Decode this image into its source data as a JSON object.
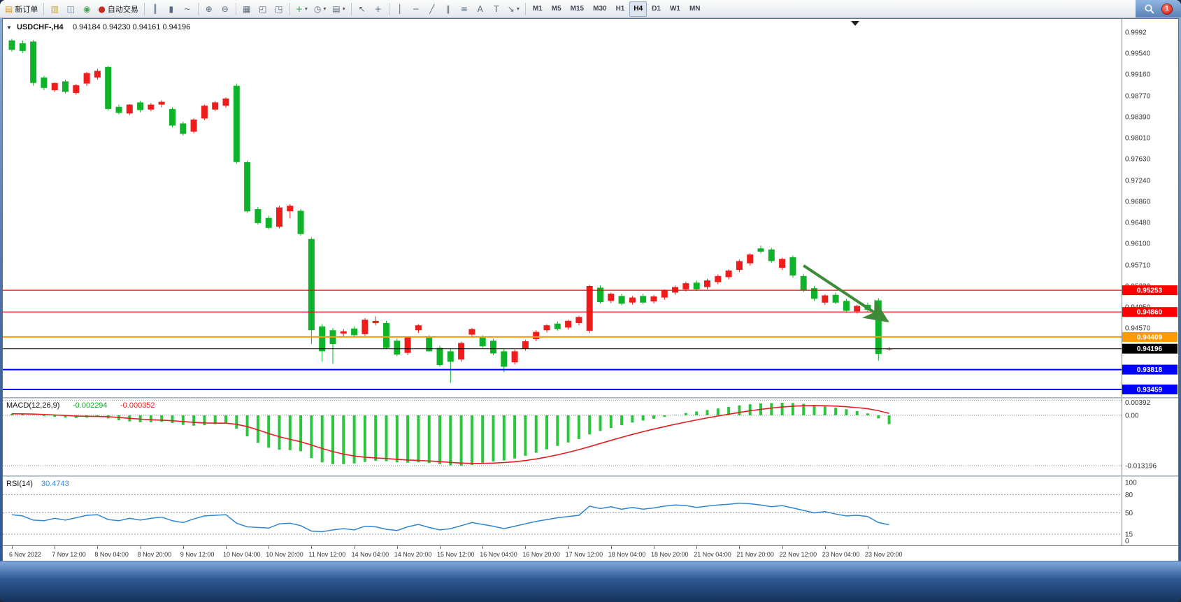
{
  "window": {
    "badge_count": "1"
  },
  "icons": {
    "chart_menu": "▼",
    "caret": "▾"
  },
  "toolbar": {
    "groups": [
      [
        {
          "name": "new-order-button",
          "glyph": "▤",
          "color": "#d89a2e",
          "label": "新订单"
        }
      ],
      [
        {
          "name": "charts-grid-button",
          "glyph": "▥",
          "color": "#caa53d"
        },
        {
          "name": "data-window-button",
          "glyph": "◫",
          "color": "#5b83b5"
        },
        {
          "name": "signals-button",
          "glyph": "◉",
          "color": "#4f9e58"
        },
        {
          "name": "autotrade-button",
          "glyph": "●",
          "color": "#c92a1e",
          "label": "自动交易"
        }
      ],
      [
        {
          "name": "bars-type-button",
          "glyph": "║"
        },
        {
          "name": "candles-type-button",
          "glyph": "▮"
        },
        {
          "name": "line-type-button",
          "glyph": "~"
        }
      ],
      [
        {
          "name": "zoom-in-button",
          "glyph": "⊕"
        },
        {
          "name": "zoom-out-button",
          "glyph": "⊖"
        }
      ],
      [
        {
          "name": "tile-windows-button",
          "glyph": "▦"
        },
        {
          "name": "auto-arrange-button",
          "glyph": "◰"
        },
        {
          "name": "track-chart-button",
          "glyph": "◳"
        }
      ],
      [
        {
          "name": "new-chart-button",
          "glyph": "+",
          "color": "#2fa84f",
          "caret": true
        },
        {
          "name": "periods-button",
          "glyph": "◷",
          "caret": true
        },
        {
          "name": "templates-button",
          "glyph": "▤",
          "caret": true
        }
      ],
      [
        {
          "name": "cursor-button",
          "glyph": "↖"
        },
        {
          "name": "crosshair-button",
          "glyph": "+"
        }
      ],
      [
        {
          "name": "vertical-line-button",
          "glyph": "│"
        },
        {
          "name": "horizontal-line-button",
          "glyph": "─"
        },
        {
          "name": "trendline-button",
          "glyph": "╱"
        },
        {
          "name": "channel-button",
          "glyph": "∥"
        },
        {
          "name": "fibonacci-button",
          "glyph": "≡"
        },
        {
          "name": "text-button",
          "glyph": "A"
        },
        {
          "name": "label-button",
          "glyph": "T"
        },
        {
          "name": "arrows-button",
          "glyph": "↘",
          "caret": true
        }
      ]
    ],
    "timeframes": [
      "M1",
      "M5",
      "M15",
      "M30",
      "H1",
      "H4",
      "D1",
      "W1",
      "MN"
    ],
    "active_timeframe": "H4"
  },
  "colors": {
    "up": "#ef1c1c",
    "down": "#0fb32a",
    "macd_hist": "#2cc63e",
    "macd_signal": "#e02020",
    "rsi_line": "#2e86d3"
  },
  "chart_data": {
    "type": "candlestick",
    "symbol": "USDCHF-",
    "timeframe": "H4",
    "main": {
      "header_symbol": "USDCHF-,H4",
      "header_ohlc": "0.94184 0.94230 0.94161 0.94196",
      "price_top": 1.0016,
      "price_bottom": 0.9332,
      "axis_ticks": [
        {
          "label": "0.9992",
          "value": 0.9992
        },
        {
          "label": "0.99540",
          "value": 0.9954
        },
        {
          "label": "0.99160",
          "value": 0.9916
        },
        {
          "label": "0.98770",
          "value": 0.9877
        },
        {
          "label": "0.98390",
          "value": 0.9839
        },
        {
          "label": "0.98010",
          "value": 0.9801
        },
        {
          "label": "0.97630",
          "value": 0.9763
        },
        {
          "label": "0.97240",
          "value": 0.9724
        },
        {
          "label": "0.96860",
          "value": 0.9686
        },
        {
          "label": "0.96480",
          "value": 0.9648
        },
        {
          "label": "0.96100",
          "value": 0.961
        },
        {
          "label": "0.95710",
          "value": 0.9571
        },
        {
          "label": "0.95330",
          "value": 0.9533
        },
        {
          "label": "0.94950",
          "value": 0.9495
        },
        {
          "label": "0.94570",
          "value": 0.9457
        },
        {
          "label": "0.94190",
          "value": 0.9419
        },
        {
          "label": "0.93810",
          "value": 0.9381
        },
        {
          "label": "0.93430",
          "value": 0.9343
        }
      ],
      "levels": [
        {
          "label": "0.95253",
          "value": 0.95253,
          "color": "#ff0000",
          "width": 1.2
        },
        {
          "label": "0.94860",
          "value": 0.9486,
          "color": "#ff0000",
          "width": 1.2
        },
        {
          "label": "0.94409",
          "value": 0.94409,
          "color": "#ff9900",
          "width": 2
        },
        {
          "label": "0.94196",
          "value": 0.94196,
          "color": "#000000",
          "width": 1
        },
        {
          "label": "0.93818",
          "value": 0.93818,
          "color": "#0000ff",
          "width": 2
        },
        {
          "label": "0.93459",
          "value": 0.93459,
          "color": "#0000ff",
          "width": 2
        }
      ],
      "arrow": {
        "from_bar": 74,
        "from_price": 0.957,
        "to_bar": 81.8,
        "to_price": 0.947,
        "color": "#3d8b37"
      },
      "candles": [
        [
          0.9977,
          0.998,
          0.9957,
          0.996
        ],
        [
          0.9972,
          0.9977,
          0.9954,
          0.9958
        ],
        [
          0.9975,
          0.9978,
          0.9895,
          0.99
        ],
        [
          0.991,
          0.9913,
          0.9887,
          0.9891
        ],
        [
          0.9887,
          0.9901,
          0.9884,
          0.99
        ],
        [
          0.9903,
          0.9906,
          0.9881,
          0.9884
        ],
        [
          0.9882,
          0.9898,
          0.9879,
          0.9896
        ],
        [
          0.9899,
          0.992,
          0.9895,
          0.9918
        ],
        [
          0.991,
          0.9926,
          0.9906,
          0.9922
        ],
        [
          0.9929,
          0.9931,
          0.985,
          0.9853
        ],
        [
          0.9857,
          0.9861,
          0.9843,
          0.9846
        ],
        [
          0.9845,
          0.9862,
          0.9842,
          0.9861
        ],
        [
          0.9865,
          0.9868,
          0.9847,
          0.9851
        ],
        [
          0.9852,
          0.9864,
          0.9849,
          0.9861
        ],
        [
          0.9861,
          0.9869,
          0.9856,
          0.9866
        ],
        [
          0.9853,
          0.9856,
          0.982,
          0.9823
        ],
        [
          0.9827,
          0.983,
          0.9805,
          0.9808
        ],
        [
          0.9812,
          0.9836,
          0.9809,
          0.9834
        ],
        [
          0.9836,
          0.9861,
          0.9833,
          0.9859
        ],
        [
          0.9852,
          0.9868,
          0.9849,
          0.9865
        ],
        [
          0.9859,
          0.9874,
          0.9855,
          0.9872
        ],
        [
          0.9895,
          0.9899,
          0.9754,
          0.9757
        ],
        [
          0.9757,
          0.976,
          0.9665,
          0.9668
        ],
        [
          0.9672,
          0.9676,
          0.9644,
          0.9647
        ],
        [
          0.9656,
          0.966,
          0.9635,
          0.9638
        ],
        [
          0.964,
          0.9678,
          0.9637,
          0.9675
        ],
        [
          0.9668,
          0.9681,
          0.9655,
          0.9678
        ],
        [
          0.9669,
          0.9672,
          0.9624,
          0.9627
        ],
        [
          0.9618,
          0.9621,
          0.9428,
          0.9453
        ],
        [
          0.946,
          0.9464,
          0.9396,
          0.9415
        ],
        [
          0.9453,
          0.9457,
          0.9392,
          0.9428
        ],
        [
          0.9447,
          0.9455,
          0.9442,
          0.9451
        ],
        [
          0.9456,
          0.946,
          0.944,
          0.9444
        ],
        [
          0.9446,
          0.9475,
          0.9443,
          0.9472
        ],
        [
          0.9466,
          0.9478,
          0.9462,
          0.947
        ],
        [
          0.9466,
          0.947,
          0.9419,
          0.9421
        ],
        [
          0.9434,
          0.9438,
          0.9406,
          0.9409
        ],
        [
          0.9412,
          0.9442,
          0.9408,
          0.944
        ],
        [
          0.9453,
          0.9464,
          0.9448,
          0.9462
        ],
        [
          0.944,
          0.9444,
          0.9414,
          0.9415
        ],
        [
          0.9421,
          0.9425,
          0.9387,
          0.939
        ],
        [
          0.9415,
          0.9419,
          0.9358,
          0.9396
        ],
        [
          0.94,
          0.9432,
          0.9396,
          0.943
        ],
        [
          0.9445,
          0.9457,
          0.944,
          0.9455
        ],
        [
          0.944,
          0.9444,
          0.9421,
          0.9424
        ],
        [
          0.9434,
          0.9438,
          0.9408,
          0.9411
        ],
        [
          0.9415,
          0.9419,
          0.9377,
          0.9387
        ],
        [
          0.9395,
          0.9418,
          0.9391,
          0.9415
        ],
        [
          0.942,
          0.9436,
          0.9416,
          0.9433
        ],
        [
          0.9437,
          0.9453,
          0.9433,
          0.945
        ],
        [
          0.9453,
          0.9464,
          0.9449,
          0.9462
        ],
        [
          0.9465,
          0.9469,
          0.9452,
          0.9455
        ],
        [
          0.9458,
          0.9472,
          0.9454,
          0.947
        ],
        [
          0.9466,
          0.9479,
          0.9462,
          0.9477
        ],
        [
          0.9452,
          0.9535,
          0.9448,
          0.9533
        ],
        [
          0.953,
          0.9534,
          0.9501,
          0.9504
        ],
        [
          0.9506,
          0.9521,
          0.9502,
          0.9519
        ],
        [
          0.9515,
          0.9519,
          0.9498,
          0.9501
        ],
        [
          0.9503,
          0.9515,
          0.9499,
          0.9512
        ],
        [
          0.9515,
          0.9519,
          0.95,
          0.9503
        ],
        [
          0.9505,
          0.9517,
          0.9501,
          0.9514
        ],
        [
          0.9512,
          0.9527,
          0.9508,
          0.9525
        ],
        [
          0.9521,
          0.9534,
          0.9517,
          0.9531
        ],
        [
          0.9527,
          0.9541,
          0.9523,
          0.9538
        ],
        [
          0.9539,
          0.9543,
          0.9524,
          0.9527
        ],
        [
          0.9531,
          0.9546,
          0.9527,
          0.9543
        ],
        [
          0.954,
          0.9554,
          0.9536,
          0.9551
        ],
        [
          0.9549,
          0.9563,
          0.9545,
          0.9561
        ],
        [
          0.9562,
          0.9581,
          0.9558,
          0.9578
        ],
        [
          0.9574,
          0.9592,
          0.957,
          0.959
        ],
        [
          0.9601,
          0.9606,
          0.9592,
          0.9595
        ],
        [
          0.9599,
          0.9602,
          0.9575,
          0.9578
        ],
        [
          0.9566,
          0.9584,
          0.9562,
          0.9582
        ],
        [
          0.9585,
          0.9588,
          0.9548,
          0.9552
        ],
        [
          0.9551,
          0.9555,
          0.9522,
          0.9525
        ],
        [
          0.9529,
          0.9533,
          0.9506,
          0.951
        ],
        [
          0.9503,
          0.9518,
          0.9499,
          0.9516
        ],
        [
          0.9517,
          0.9521,
          0.95,
          0.9503
        ],
        [
          0.9506,
          0.951,
          0.9485,
          0.9488
        ],
        [
          0.9487,
          0.9499,
          0.9483,
          0.9497
        ],
        [
          0.9499,
          0.9503,
          0.9486,
          0.949
        ],
        [
          0.9507,
          0.9511,
          0.9398,
          0.941
        ],
        [
          0.94184,
          0.9423,
          0.94161,
          0.94196
        ]
      ]
    },
    "macd": {
      "label": "MACD(12,26,9)",
      "value": "-0.002294",
      "signal_value": "-0.000352",
      "axis": [
        {
          "label": "0.00392",
          "value": 0.00392
        },
        {
          "label": "0.00",
          "value": 0
        },
        {
          "label": "-0.013196",
          "value": -0.013196
        }
      ],
      "values": [
        0.0004,
        0.0003,
        0.0001,
        -0.0002,
        -0.0004,
        -0.0006,
        -0.0007,
        -0.0006,
        -0.0004,
        -0.0008,
        -0.0013,
        -0.0016,
        -0.0018,
        -0.0018,
        -0.0017,
        -0.002,
        -0.0025,
        -0.0027,
        -0.0026,
        -0.0023,
        -0.002,
        -0.0035,
        -0.0055,
        -0.0072,
        -0.0085,
        -0.009,
        -0.0091,
        -0.0094,
        -0.0112,
        -0.0123,
        -0.0128,
        -0.0128,
        -0.0126,
        -0.0122,
        -0.0119,
        -0.012,
        -0.0123,
        -0.0124,
        -0.0123,
        -0.0125,
        -0.0128,
        -0.0131,
        -0.0132,
        -0.013,
        -0.0126,
        -0.0121,
        -0.0118,
        -0.0113,
        -0.0106,
        -0.0098,
        -0.0089,
        -0.008,
        -0.0071,
        -0.0062,
        -0.005,
        -0.0041,
        -0.0033,
        -0.0026,
        -0.0019,
        -0.0014,
        -0.0009,
        -0.0004,
        0.0001,
        0.0006,
        0.001,
        0.0014,
        0.0018,
        0.0022,
        0.0026,
        0.0029,
        0.0031,
        0.0032,
        0.0033,
        0.0032,
        0.003,
        0.0027,
        0.0024,
        0.002,
        0.0016,
        0.0011,
        0.0005,
        -0.0008,
        -0.0023
      ]
    },
    "rsi": {
      "label": "RSI(14)",
      "value": "30.4743",
      "axis": [
        {
          "label": "100",
          "value": 100
        },
        {
          "label": "80",
          "value": 80
        },
        {
          "label": "50",
          "value": 50
        },
        {
          "label": "15",
          "value": 15
        },
        {
          "label": "0",
          "value": 0
        }
      ],
      "level_lines": [
        80,
        50,
        15
      ],
      "values": [
        47,
        45,
        38,
        37,
        41,
        38,
        42,
        46,
        47,
        39,
        37,
        41,
        38,
        41,
        43,
        37,
        34,
        40,
        45,
        46,
        47,
        33,
        27,
        26,
        25,
        32,
        33,
        29,
        20,
        19,
        22,
        24,
        22,
        28,
        27,
        23,
        21,
        27,
        31,
        26,
        22,
        24,
        29,
        34,
        31,
        28,
        24,
        28,
        32,
        36,
        39,
        42,
        44,
        46,
        61,
        57,
        60,
        56,
        59,
        56,
        58,
        61,
        63,
        62,
        59,
        61,
        63,
        64,
        66,
        65,
        63,
        60,
        62,
        58,
        54,
        50,
        52,
        48,
        45,
        46,
        44,
        34,
        30.5
      ]
    },
    "time_labels": [
      "6 Nov 2022",
      "7 Nov 12:00",
      "8 Nov 04:00",
      "8 Nov 20:00",
      "9 Nov 12:00",
      "10 Nov 04:00",
      "10 Nov 20:00",
      "11 Nov 12:00",
      "14 Nov 04:00",
      "14 Nov 20:00",
      "15 Nov 12:00",
      "16 Nov 04:00",
      "16 Nov 20:00",
      "17 Nov 12:00",
      "18 Nov 04:00",
      "18 Nov 20:00",
      "21 Nov 04:00",
      "21 Nov 20:00",
      "22 Nov 12:00",
      "23 Nov 04:00",
      "23 Nov 20:00"
    ]
  }
}
